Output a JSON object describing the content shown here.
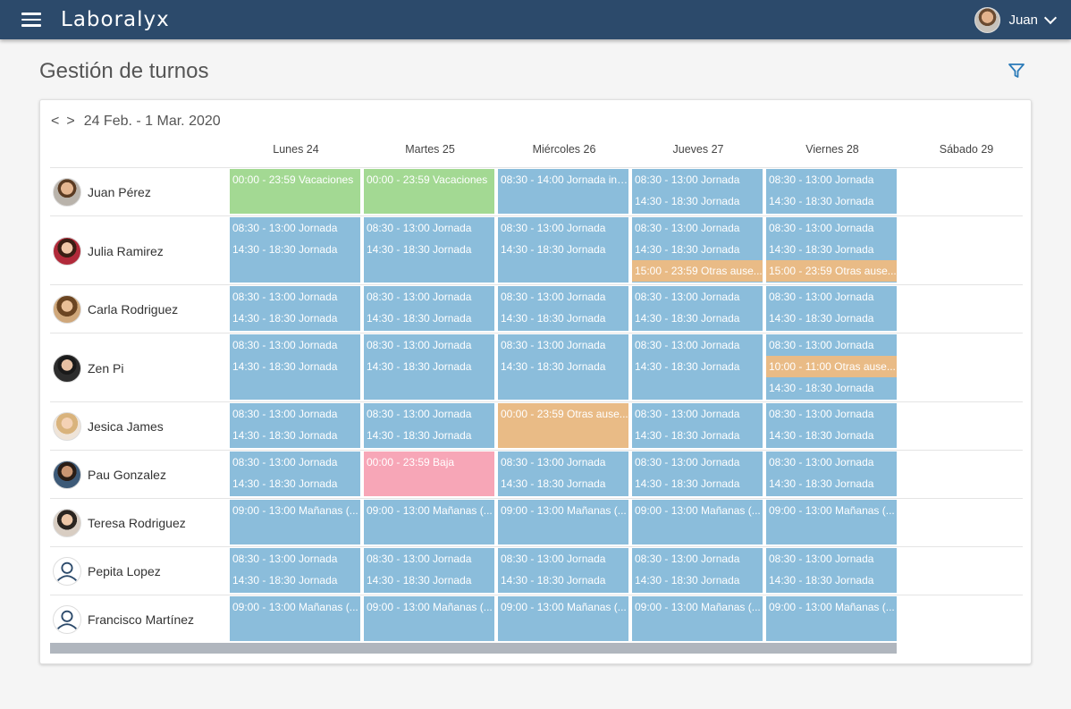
{
  "header": {
    "brand": "Laboralyx",
    "user_name": "Juan"
  },
  "page": {
    "title": "Gestión de turnos"
  },
  "nav": {
    "prev": "<",
    "next": ">",
    "range": "24 Feb. - 1 Mar. 2020"
  },
  "days": [
    "Lunes 24",
    "Martes 25",
    "Miércoles 26",
    "Jueves 27",
    "Viernes 28",
    "Sábado 29"
  ],
  "colors": {
    "jornada": "#8bbddb",
    "vacaciones": "#a3d993",
    "ausencia": "#e9bb86",
    "baja": "#f7a6b7",
    "topbar": "#2c4a6b"
  },
  "employees": [
    {
      "name": "Juan Pérez",
      "avatar": "photo",
      "days": [
        [
          {
            "t": "00:00 - 23:59 Vacaciones",
            "k": "green"
          }
        ],
        [
          {
            "t": "00:00 - 23:59 Vacaciones",
            "k": "green"
          }
        ],
        [
          {
            "t": "08:30 - 14:00 Jornada int...",
            "k": "blue"
          }
        ],
        [
          {
            "t": "08:30 - 13:00 Jornada",
            "k": "blue"
          },
          {
            "t": "14:30 - 18:30 Jornada",
            "k": "blue"
          }
        ],
        [
          {
            "t": "08:30 - 13:00 Jornada",
            "k": "blue"
          },
          {
            "t": "14:30 - 18:30 Jornada",
            "k": "blue"
          }
        ]
      ]
    },
    {
      "name": "Julia Ramirez",
      "avatar": "photo",
      "days": [
        [
          {
            "t": "08:30 - 13:00 Jornada",
            "k": "blue"
          },
          {
            "t": "14:30 - 18:30 Jornada",
            "k": "blue"
          }
        ],
        [
          {
            "t": "08:30 - 13:00 Jornada",
            "k": "blue"
          },
          {
            "t": "14:30 - 18:30 Jornada",
            "k": "blue"
          }
        ],
        [
          {
            "t": "08:30 - 13:00 Jornada",
            "k": "blue"
          },
          {
            "t": "14:30 - 18:30 Jornada",
            "k": "blue"
          }
        ],
        [
          {
            "t": "08:30 - 13:00 Jornada",
            "k": "blue"
          },
          {
            "t": "14:30 - 18:30 Jornada",
            "k": "blue"
          },
          {
            "t": "15:00 - 23:59 Otras ause...",
            "k": "orange"
          }
        ],
        [
          {
            "t": "08:30 - 13:00 Jornada",
            "k": "blue"
          },
          {
            "t": "14:30 - 18:30 Jornada",
            "k": "blue"
          },
          {
            "t": "15:00 - 23:59 Otras ause...",
            "k": "orange"
          }
        ]
      ]
    },
    {
      "name": "Carla Rodriguez",
      "avatar": "photo",
      "days": [
        [
          {
            "t": "08:30 - 13:00 Jornada",
            "k": "blue"
          },
          {
            "t": "14:30 - 18:30 Jornada",
            "k": "blue"
          }
        ],
        [
          {
            "t": "08:30 - 13:00 Jornada",
            "k": "blue"
          },
          {
            "t": "14:30 - 18:30 Jornada",
            "k": "blue"
          }
        ],
        [
          {
            "t": "08:30 - 13:00 Jornada",
            "k": "blue"
          },
          {
            "t": "14:30 - 18:30 Jornada",
            "k": "blue"
          }
        ],
        [
          {
            "t": "08:30 - 13:00 Jornada",
            "k": "blue"
          },
          {
            "t": "14:30 - 18:30 Jornada",
            "k": "blue"
          }
        ],
        [
          {
            "t": "08:30 - 13:00 Jornada",
            "k": "blue"
          },
          {
            "t": "14:30 - 18:30 Jornada",
            "k": "blue"
          }
        ]
      ]
    },
    {
      "name": "Zen Pi",
      "avatar": "photo",
      "days": [
        [
          {
            "t": "08:30 - 13:00 Jornada",
            "k": "blue"
          },
          {
            "t": "14:30 - 18:30 Jornada",
            "k": "blue"
          }
        ],
        [
          {
            "t": "08:30 - 13:00 Jornada",
            "k": "blue"
          },
          {
            "t": "14:30 - 18:30 Jornada",
            "k": "blue"
          }
        ],
        [
          {
            "t": "08:30 - 13:00 Jornada",
            "k": "blue"
          },
          {
            "t": "14:30 - 18:30 Jornada",
            "k": "blue"
          }
        ],
        [
          {
            "t": "08:30 - 13:00 Jornada",
            "k": "blue"
          },
          {
            "t": "14:30 - 18:30 Jornada",
            "k": "blue"
          }
        ],
        [
          {
            "t": "08:30 - 13:00 Jornada",
            "k": "blue"
          },
          {
            "t": "10:00 - 11:00 Otras ause...",
            "k": "orange"
          },
          {
            "t": "14:30 - 18:30 Jornada",
            "k": "blue"
          }
        ]
      ]
    },
    {
      "name": "Jesica James",
      "avatar": "photo",
      "days": [
        [
          {
            "t": "08:30 - 13:00 Jornada",
            "k": "blue"
          },
          {
            "t": "14:30 - 18:30 Jornada",
            "k": "blue"
          }
        ],
        [
          {
            "t": "08:30 - 13:00 Jornada",
            "k": "blue"
          },
          {
            "t": "14:30 - 18:30 Jornada",
            "k": "blue"
          }
        ],
        [
          {
            "t": "00:00 - 23:59 Otras ause...",
            "k": "orange",
            "fill": true
          }
        ],
        [
          {
            "t": "08:30 - 13:00 Jornada",
            "k": "blue"
          },
          {
            "t": "14:30 - 18:30 Jornada",
            "k": "blue"
          }
        ],
        [
          {
            "t": "08:30 - 13:00 Jornada",
            "k": "blue"
          },
          {
            "t": "14:30 - 18:30 Jornada",
            "k": "blue"
          }
        ]
      ]
    },
    {
      "name": "Pau Gonzalez",
      "avatar": "photo",
      "days": [
        [
          {
            "t": "08:30 - 13:00 Jornada",
            "k": "blue"
          },
          {
            "t": "14:30 - 18:30 Jornada",
            "k": "blue"
          }
        ],
        [
          {
            "t": "00:00 - 23:59 Baja",
            "k": "pink",
            "fill": true
          }
        ],
        [
          {
            "t": "08:30 - 13:00 Jornada",
            "k": "blue"
          },
          {
            "t": "14:30 - 18:30 Jornada",
            "k": "blue"
          }
        ],
        [
          {
            "t": "08:30 - 13:00 Jornada",
            "k": "blue"
          },
          {
            "t": "14:30 - 18:30 Jornada",
            "k": "blue"
          }
        ],
        [
          {
            "t": "08:30 - 13:00 Jornada",
            "k": "blue"
          },
          {
            "t": "14:30 - 18:30 Jornada",
            "k": "blue"
          }
        ]
      ]
    },
    {
      "name": "Teresa Rodriguez",
      "avatar": "photo",
      "days": [
        [
          {
            "t": "09:00 - 13:00 Mañanas (...",
            "k": "blue"
          }
        ],
        [
          {
            "t": "09:00 - 13:00 Mañanas (...",
            "k": "blue"
          }
        ],
        [
          {
            "t": "09:00 - 13:00 Mañanas (...",
            "k": "blue"
          }
        ],
        [
          {
            "t": "09:00 - 13:00 Mañanas (...",
            "k": "blue"
          }
        ],
        [
          {
            "t": "09:00 - 13:00 Mañanas (...",
            "k": "blue"
          }
        ]
      ]
    },
    {
      "name": "Pepita Lopez",
      "avatar": "placeholder",
      "days": [
        [
          {
            "t": "08:30 - 13:00 Jornada",
            "k": "blue"
          },
          {
            "t": "14:30 - 18:30 Jornada",
            "k": "blue"
          }
        ],
        [
          {
            "t": "08:30 - 13:00 Jornada",
            "k": "blue"
          },
          {
            "t": "14:30 - 18:30 Jornada",
            "k": "blue"
          }
        ],
        [
          {
            "t": "08:30 - 13:00 Jornada",
            "k": "blue"
          },
          {
            "t": "14:30 - 18:30 Jornada",
            "k": "blue"
          }
        ],
        [
          {
            "t": "08:30 - 13:00 Jornada",
            "k": "blue"
          },
          {
            "t": "14:30 - 18:30 Jornada",
            "k": "blue"
          }
        ],
        [
          {
            "t": "08:30 - 13:00 Jornada",
            "k": "blue"
          },
          {
            "t": "14:30 - 18:30 Jornada",
            "k": "blue"
          }
        ]
      ]
    },
    {
      "name": "Francisco Martínez",
      "avatar": "placeholder",
      "days": [
        [
          {
            "t": "09:00 - 13:00 Mañanas (...",
            "k": "blue"
          }
        ],
        [
          {
            "t": "09:00 - 13:00 Mañanas (...",
            "k": "blue"
          }
        ],
        [
          {
            "t": "09:00 - 13:00 Mañanas (...",
            "k": "blue"
          }
        ],
        [
          {
            "t": "09:00 - 13:00 Mañanas (...",
            "k": "blue"
          }
        ],
        [
          {
            "t": "09:00 - 13:00 Mañanas (...",
            "k": "blue"
          }
        ]
      ]
    }
  ]
}
